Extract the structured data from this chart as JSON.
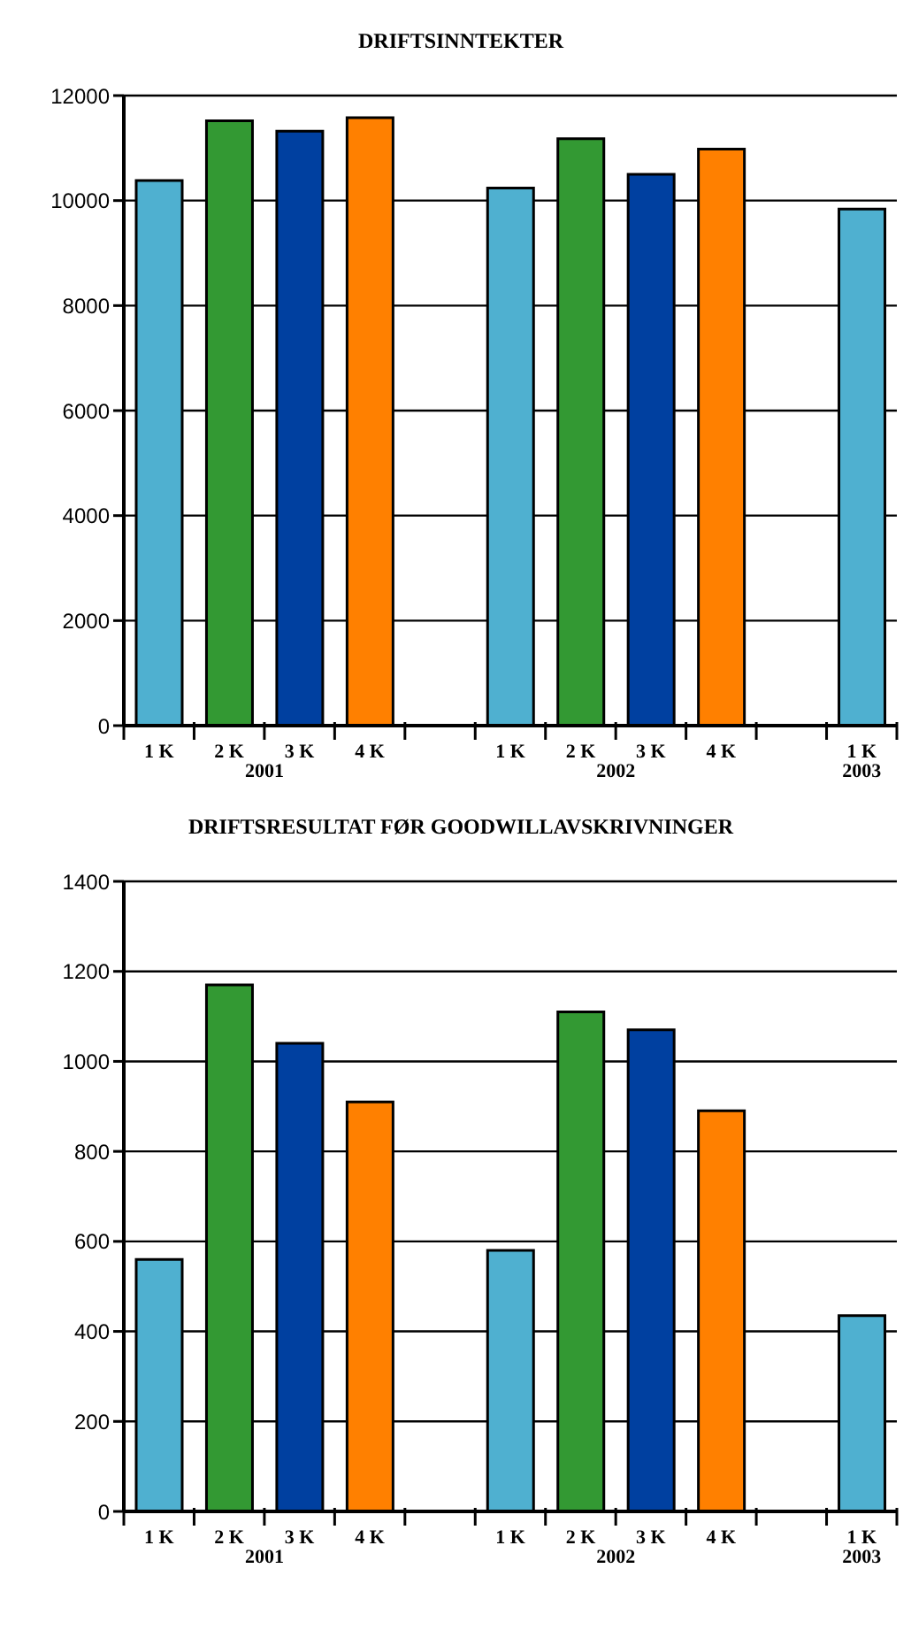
{
  "chart_data": [
    {
      "type": "bar",
      "title": "DRIFTSINNTEKTER",
      "categories": [
        "1 K",
        "2 K",
        "3 K",
        "4 K",
        null,
        "1 K",
        "2 K",
        "3 K",
        "4 K",
        null,
        "1 K"
      ],
      "values": [
        10380,
        11520,
        11320,
        11580,
        null,
        10240,
        11180,
        10500,
        10980,
        null,
        9840
      ],
      "colors": [
        "#4fb0d0",
        "#339933",
        "#0040a0",
        "#ff8000",
        "#ffffff",
        "#4fb0d0",
        "#339933",
        "#0040a0",
        "#ff8000",
        "#ffffff",
        "#4fb0d0"
      ],
      "ylim": [
        0,
        12000
      ],
      "yticks": [
        0,
        2000,
        4000,
        6000,
        8000,
        10000,
        12000
      ],
      "grid": "y",
      "annotations": [
        "2001",
        "2002",
        "2003"
      ]
    },
    {
      "type": "bar",
      "title": "DRIFTSRESULTAT FØR GOODWILLAVSKRIVNINGER",
      "categories": [
        "1 K",
        "2 K",
        "3 K",
        "4 K",
        null,
        "1 K",
        "2 K",
        "3 K",
        "4 K",
        null,
        "1 K"
      ],
      "values": [
        560,
        1170,
        1040,
        910,
        null,
        580,
        1110,
        1070,
        890,
        null,
        435
      ],
      "colors": [
        "#4fb0d0",
        "#339933",
        "#0040a0",
        "#ff8000",
        "#ffffff",
        "#4fb0d0",
        "#339933",
        "#0040a0",
        "#ff8000",
        "#ffffff",
        "#4fb0d0"
      ],
      "ylim": [
        0,
        1400
      ],
      "yticks": [
        0,
        200,
        400,
        600,
        800,
        1000,
        1200,
        1400
      ],
      "grid": "y",
      "annotations": [
        "2001",
        "2002",
        "2003"
      ]
    }
  ]
}
